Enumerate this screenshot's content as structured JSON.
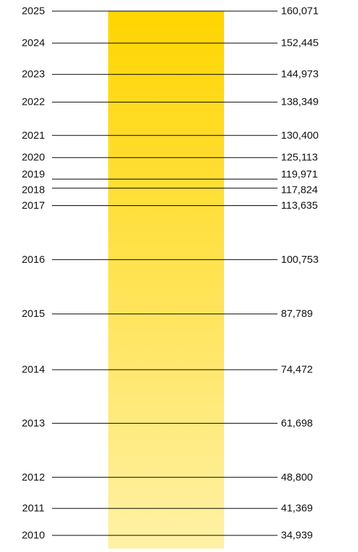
{
  "chart_data": {
    "type": "bar",
    "title": "",
    "xlabel": "",
    "ylabel": "",
    "grid": false,
    "categories": [
      "2025",
      "2024",
      "2023",
      "2022",
      "2021",
      "2020",
      "2019",
      "2018",
      "2017",
      "2016",
      "2015",
      "2014",
      "2013",
      "2012",
      "2011",
      "2010"
    ],
    "values": [
      160071,
      152445,
      144973,
      138349,
      130400,
      125113,
      119971,
      117824,
      113635,
      100753,
      87789,
      74472,
      61698,
      48800,
      41369,
      34939
    ],
    "value_labels": [
      "160,071",
      "152,445",
      "144,973",
      "138,349",
      "130,400",
      "125,113",
      "119,971",
      "117,824",
      "113,635",
      "100,753",
      "87,789",
      "74,472",
      "61,698",
      "48,800",
      "41,369",
      "34,939"
    ],
    "colors": {
      "bar_top": "#FFD500",
      "bar_bottom": "#FFF1A6",
      "line": "#000000",
      "text": "#111111"
    }
  }
}
